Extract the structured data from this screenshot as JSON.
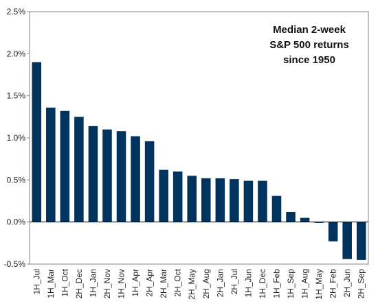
{
  "chart_data": {
    "type": "bar",
    "title_lines": [
      "Median 2-week",
      "S&P 500 returns",
      "since 1950"
    ],
    "xlabel": "",
    "ylabel": "",
    "categories": [
      "1H_Jul",
      "1H_Mar",
      "1H_Oct",
      "2H_Dec",
      "1H_Jan",
      "2H_Nov",
      "1H_Nov",
      "1H_Apr",
      "2H_Apr",
      "2H_Mar",
      "2H_Oct",
      "2H_May",
      "2H_Aug",
      "2H_Jan",
      "2H_Jul",
      "1H_Jun",
      "1H_Dec",
      "1H_Feb",
      "1H_Sep",
      "1H_Aug",
      "1H_May",
      "2H_Feb",
      "2H_Jun",
      "2H_Sep"
    ],
    "values": [
      1.9,
      1.36,
      1.32,
      1.25,
      1.14,
      1.1,
      1.08,
      1.02,
      0.96,
      0.62,
      0.6,
      0.55,
      0.52,
      0.52,
      0.51,
      0.49,
      0.49,
      0.31,
      0.12,
      0.05,
      -0.01,
      -0.23,
      -0.44,
      -0.45
    ],
    "ylim": [
      -0.5,
      2.5
    ],
    "yticks": [
      -0.5,
      0.0,
      0.5,
      1.0,
      1.5,
      2.0,
      2.5
    ],
    "ytick_labels": [
      "-0.5%",
      "0.0%",
      "0.5%",
      "1.0%",
      "1.5%",
      "2.0%",
      "2.5%"
    ],
    "bar_color": "#00345f",
    "grid": false,
    "legend": "none"
  }
}
